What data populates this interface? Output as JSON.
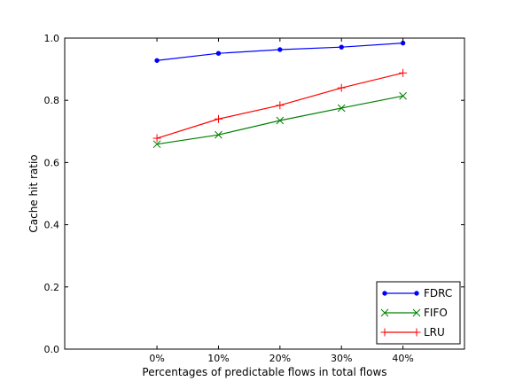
{
  "chart_data": {
    "type": "line",
    "xlabel": "Percentages of predictable flows in total flows",
    "ylabel": "Cache hit ratio",
    "categories": [
      "0%",
      "10%",
      "20%",
      "30%",
      "40%"
    ],
    "x": [
      0,
      10,
      20,
      30,
      40
    ],
    "xlim": [
      -15,
      50
    ],
    "ylim": [
      0.0,
      1.0
    ],
    "yticks": [
      0.0,
      0.2,
      0.4,
      0.6,
      0.8,
      1.0
    ],
    "ytick_labels": [
      "0.0",
      "0.2",
      "0.4",
      "0.6",
      "0.8",
      "1.0"
    ],
    "grid": false,
    "legend": "bottom-right",
    "series": [
      {
        "name": "FDRC",
        "color": "#0000ff",
        "marker": "point",
        "values": [
          0.928,
          0.951,
          0.963,
          0.971,
          0.984
        ]
      },
      {
        "name": "FIFO",
        "color": "#008000",
        "marker": "x",
        "values": [
          0.659,
          0.689,
          0.735,
          0.775,
          0.814
        ]
      },
      {
        "name": "LRU",
        "color": "#ff0000",
        "marker": "plus",
        "values": [
          0.678,
          0.74,
          0.784,
          0.84,
          0.888
        ]
      }
    ]
  }
}
